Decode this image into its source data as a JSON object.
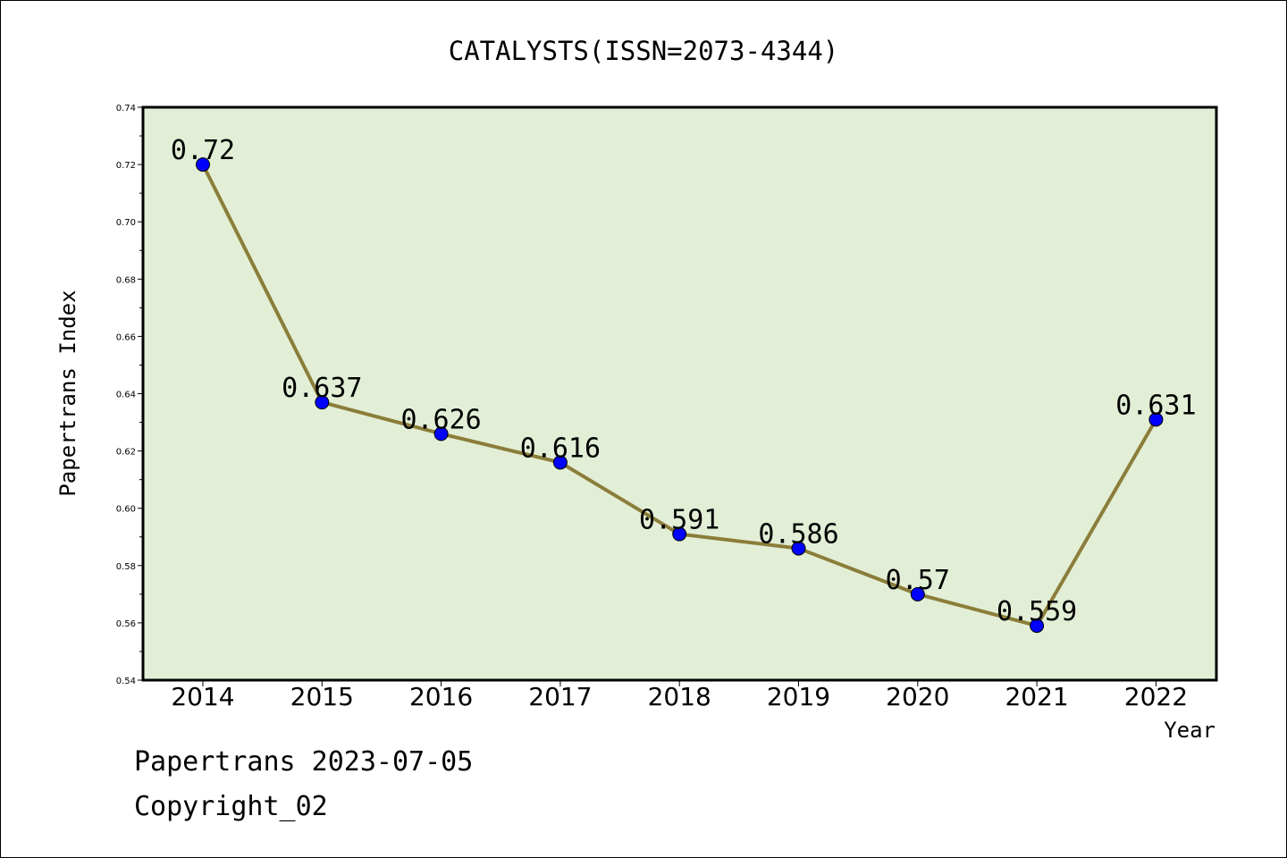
{
  "chart_data": {
    "type": "line",
    "title": "CATALYSTS(ISSN=2073-4344)",
    "xlabel": "Year",
    "ylabel": "Papertrans Index",
    "categories": [
      "2014",
      "2015",
      "2016",
      "2017",
      "2018",
      "2019",
      "2020",
      "2021",
      "2022"
    ],
    "series": [
      {
        "values": [
          0.72,
          0.637,
          0.626,
          0.616,
          0.591,
          0.586,
          0.57,
          0.559,
          0.631
        ]
      }
    ],
    "data_labels": [
      "0.72",
      "0.637",
      "0.626",
      "0.616",
      "0.591",
      "0.586",
      "0.57",
      "0.559",
      "0.631"
    ],
    "ylim": [
      0.54,
      0.74
    ],
    "yticks": [
      "0.54",
      "0.56",
      "0.58",
      "0.60",
      "0.62",
      "0.64",
      "0.66",
      "0.68",
      "0.70",
      "0.72",
      "0.74"
    ],
    "grid": false,
    "colors": {
      "plot_background": "#e2efd6",
      "line": "#8b7d3a",
      "marker": "#0000ff"
    }
  },
  "footer": {
    "source": "Papertrans 2023-07-05",
    "copyright": "Copyright_02"
  }
}
